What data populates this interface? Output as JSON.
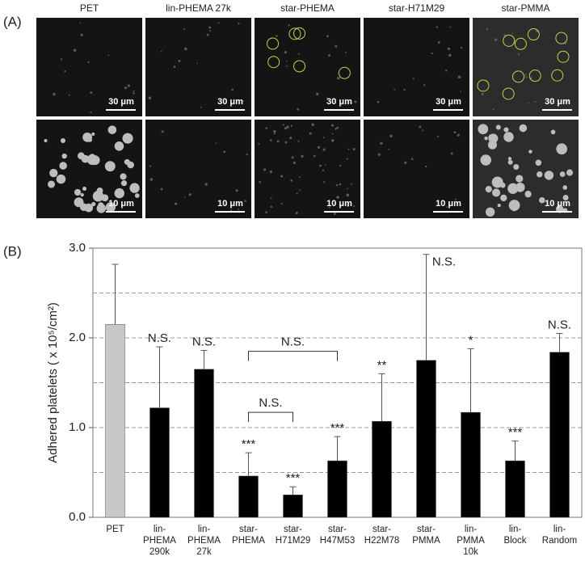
{
  "panel_a": {
    "label": "(A)",
    "columns": [
      "PET",
      "lin-PHEMA 27k",
      "star-PHEMA",
      "star-H71M29",
      "star-PMMA"
    ],
    "scale_bars": [
      "30 μm",
      "10 μm"
    ]
  },
  "chart_data": {
    "type": "bar",
    "panel_label": "(B)",
    "y_label": "Adhered platelets ( x 10⁵/cm²)",
    "categories": [
      [
        "PET"
      ],
      [
        "lin-",
        "PHEMA",
        "290k"
      ],
      [
        "lin-",
        "PHEMA",
        "27k"
      ],
      [
        "star-",
        "PHEMA"
      ],
      [
        "star-",
        "H71M29"
      ],
      [
        "star-",
        "H47M53"
      ],
      [
        "star-",
        "H22M78"
      ],
      [
        "star-",
        "PMMA"
      ],
      [
        "lin-",
        "PMMA",
        "10k"
      ],
      [
        "lin-",
        "Block"
      ],
      [
        "lin-",
        "Random"
      ]
    ],
    "values": [
      2.15,
      1.22,
      1.65,
      0.46,
      0.25,
      0.63,
      1.07,
      1.75,
      1.17,
      0.63,
      1.84
    ],
    "errors": [
      0.67,
      0.68,
      0.21,
      0.26,
      0.09,
      0.27,
      0.53,
      1.18,
      0.71,
      0.22,
      0.21
    ],
    "colors": [
      "#c8c8c8",
      "#000000",
      "#000000",
      "#000000",
      "#000000",
      "#000000",
      "#000000",
      "#000000",
      "#000000",
      "#000000",
      "#000000"
    ],
    "significance": [
      null,
      "N.S.",
      "N.S.",
      "***",
      "***",
      "***",
      "**",
      "N.S.",
      "*",
      "***",
      "N.S."
    ],
    "brackets": [
      {
        "from": 3,
        "to": 5,
        "y": 1.85,
        "label": "N.S."
      },
      {
        "from": 3,
        "to": 4,
        "y": 1.17,
        "label": "N.S."
      }
    ],
    "ylim": [
      0,
      3.0
    ],
    "yticks": [
      {
        "value": 0,
        "label": "0.0"
      },
      {
        "value": 1,
        "label": "1.0"
      },
      {
        "value": 2,
        "label": "2.0"
      },
      {
        "value": 3,
        "label": "3.0"
      }
    ],
    "grid_lines": [
      0.5,
      1,
      1.5,
      2,
      2.5
    ]
  }
}
